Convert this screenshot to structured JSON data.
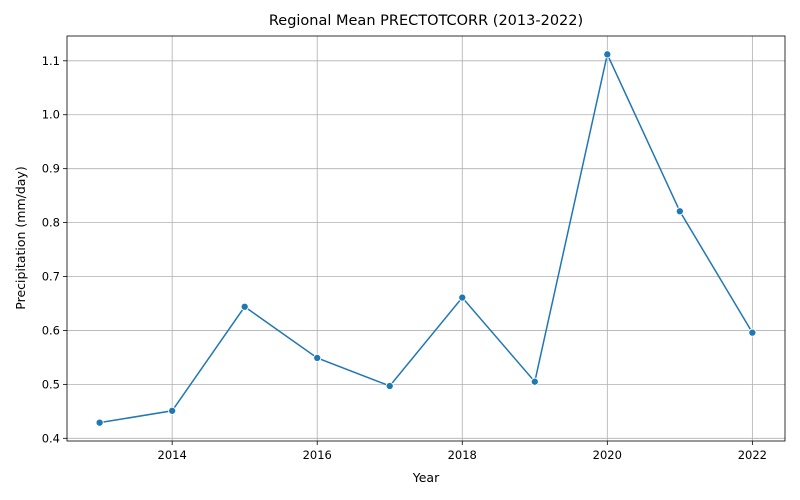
{
  "chart_data": {
    "type": "line",
    "title": "Regional Mean PRECTOTCORR (2013-2022)",
    "xlabel": "Year",
    "ylabel": "Precipitation (mm/day)",
    "x": [
      2013,
      2014,
      2015,
      2016,
      2017,
      2018,
      2019,
      2020,
      2021,
      2022
    ],
    "series": [
      {
        "values": [
          0.429,
          0.451,
          0.644,
          0.549,
          0.497,
          0.661,
          0.505,
          1.112,
          0.821,
          0.596
        ],
        "color": "#1f77b4",
        "marker": "circle"
      }
    ],
    "xlim": [
      2012.55,
      2022.45
    ],
    "ylim": [
      0.395,
      1.146
    ],
    "xticks": [
      2014,
      2016,
      2018,
      2020,
      2022
    ],
    "yticks": [
      0.4,
      0.5,
      0.6,
      0.7,
      0.8,
      0.9,
      1.0,
      1.1
    ],
    "ytick_labels": [
      "0.4",
      "0.5",
      "0.6",
      "0.7",
      "0.8",
      "0.9",
      "1.0",
      "1.1"
    ],
    "grid": true,
    "legend": false
  }
}
